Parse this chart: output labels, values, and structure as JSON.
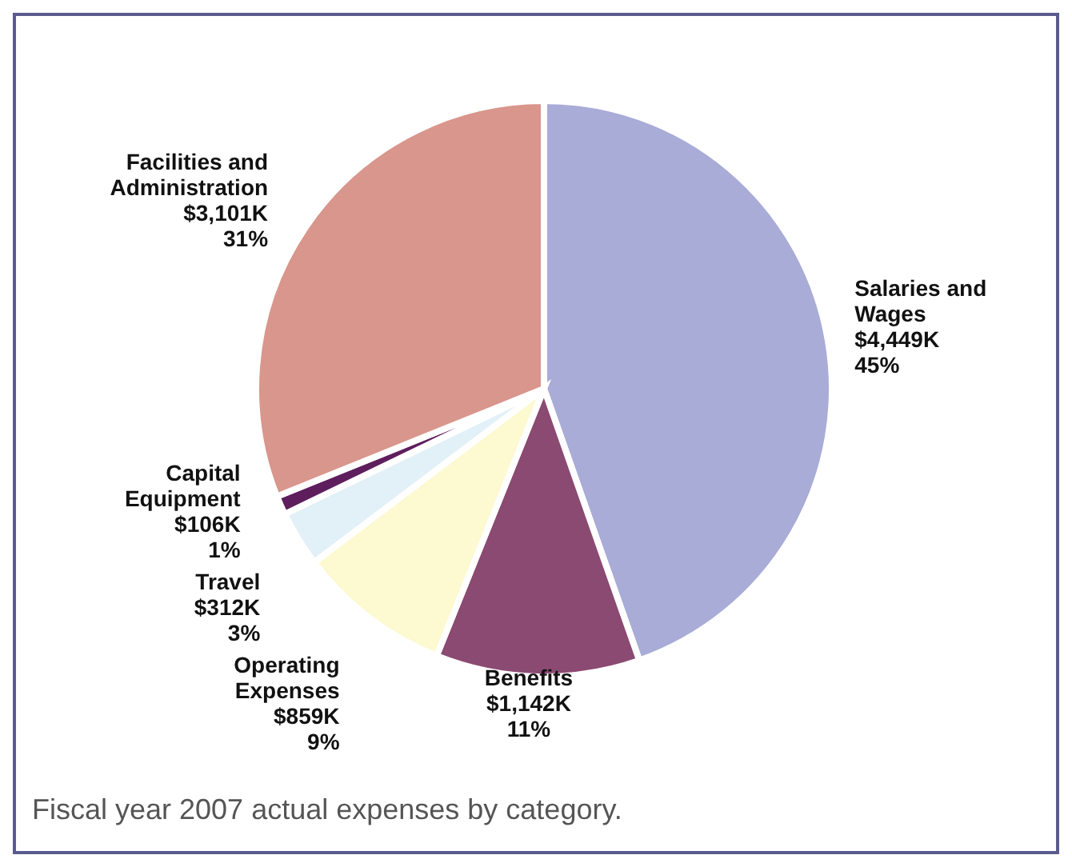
{
  "chart_data": {
    "type": "pie",
    "categories": [
      "Salaries and Wages",
      "Benefits",
      "Operating Expenses",
      "Travel",
      "Capital Equipment",
      "Facilities and Administration"
    ],
    "values": [
      4449,
      1142,
      859,
      312,
      106,
      3101
    ],
    "value_labels": [
      "$4,449K",
      "$1,142K",
      "$859K",
      "$312K",
      "$106K",
      "$3,101K"
    ],
    "colors": [
      "#a9acd6",
      "#8b4a72",
      "#fdf9d0",
      "#e2f0f8",
      "#5e1e5e",
      "#d9968c"
    ],
    "annotations": [
      {
        "text": "45%",
        "x": "Salaries and Wages"
      },
      {
        "text": "11%",
        "x": "Benefits"
      },
      {
        "text": "9%",
        "x": "Operating Expenses"
      },
      {
        "text": "3%",
        "x": "Travel"
      },
      {
        "text": "1%",
        "x": "Capital Equipment"
      },
      {
        "text": "31%",
        "x": "Facilities and Administration"
      },
      "Fiscal year 2007 actual expenses by category."
    ]
  }
}
